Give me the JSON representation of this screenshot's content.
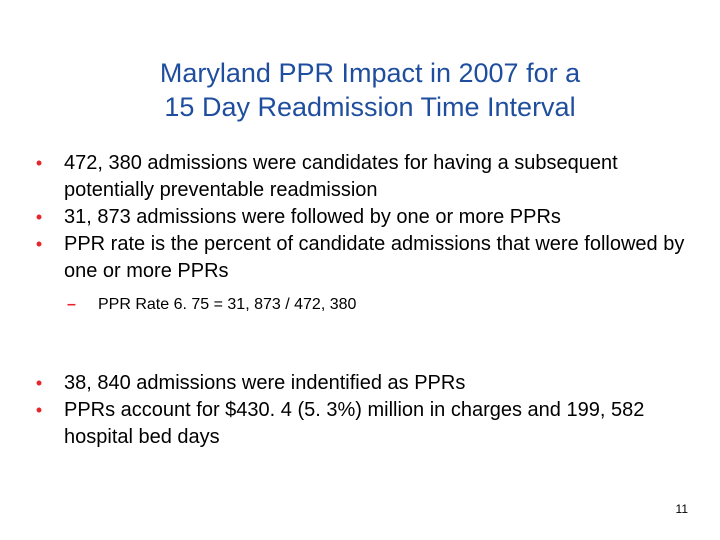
{
  "slide": {
    "title_line1": "Maryland PPR Impact in 2007 for a",
    "title_line2": "15 Day Readmission Time Interval",
    "bullet_glyph": "•",
    "subbullet_glyph": "–",
    "bullets_group1": [
      "472, 380 admissions were candidates for having a subsequent potentially preventable readmission",
      "31, 873 admissions were followed by one or more PPRs",
      "PPR rate is the percent of candidate admissions that were followed by one or more PPRs"
    ],
    "sub_bullet": "PPR Rate 6. 75 = 31, 873 / 472, 380",
    "bullets_group2": [
      "38, 840 admissions were indentified as PPRs",
      "PPRs account for $430. 4 (5. 3%) million in charges and 199, 582 hospital bed days"
    ],
    "page_number": "11",
    "colors": {
      "title": "#1f4e9e",
      "bullet": "#e8232a",
      "text": "#000000",
      "background": "#ffffff"
    }
  }
}
